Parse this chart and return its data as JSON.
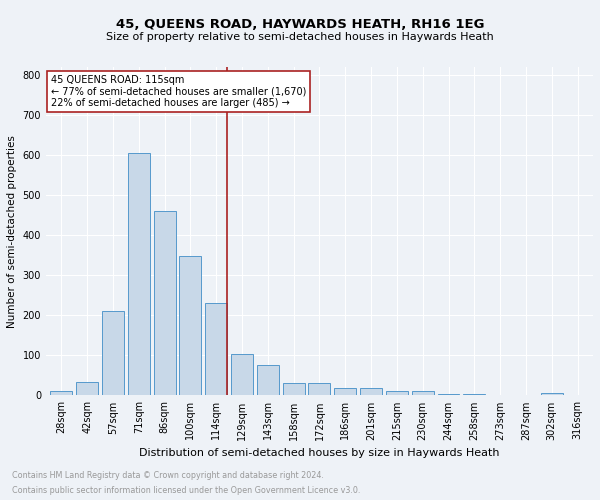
{
  "title": "45, QUEENS ROAD, HAYWARDS HEATH, RH16 1EG",
  "subtitle": "Size of property relative to semi-detached houses in Haywards Heath",
  "xlabel": "Distribution of semi-detached houses by size in Haywards Heath",
  "ylabel": "Number of semi-detached properties",
  "footnote1": "Contains HM Land Registry data © Crown copyright and database right 2024.",
  "footnote2": "Contains public sector information licensed under the Open Government Licence v3.0.",
  "categories": [
    "28sqm",
    "42sqm",
    "57sqm",
    "71sqm",
    "86sqm",
    "100sqm",
    "114sqm",
    "129sqm",
    "143sqm",
    "158sqm",
    "172sqm",
    "186sqm",
    "201sqm",
    "215sqm",
    "230sqm",
    "244sqm",
    "258sqm",
    "273sqm",
    "287sqm",
    "302sqm",
    "316sqm"
  ],
  "values": [
    10,
    33,
    210,
    605,
    460,
    347,
    230,
    103,
    75,
    30,
    30,
    18,
    18,
    10,
    10,
    4,
    4,
    2,
    2,
    7,
    2
  ],
  "bar_color": "#c8d8e8",
  "bar_edge_color": "#5599cc",
  "highlight_index": 6,
  "highlight_line_color": "#aa2222",
  "annotation_text1": "45 QUEENS ROAD: 115sqm",
  "annotation_text2": "← 77% of semi-detached houses are smaller (1,670)",
  "annotation_text3": "22% of semi-detached houses are larger (485) →",
  "annotation_box_facecolor": "#ffffff",
  "annotation_box_edgecolor": "#aa2222",
  "ylim": [
    0,
    820
  ],
  "yticks": [
    0,
    100,
    200,
    300,
    400,
    500,
    600,
    700,
    800
  ],
  "background_color": "#eef2f7",
  "grid_color": "#ffffff",
  "title_fontsize": 9.5,
  "subtitle_fontsize": 8,
  "ylabel_fontsize": 7.5,
  "xlabel_fontsize": 8,
  "tick_fontsize": 7,
  "annotation_fontsize": 7,
  "footnote_fontsize": 5.8,
  "footnote_color": "#999999"
}
